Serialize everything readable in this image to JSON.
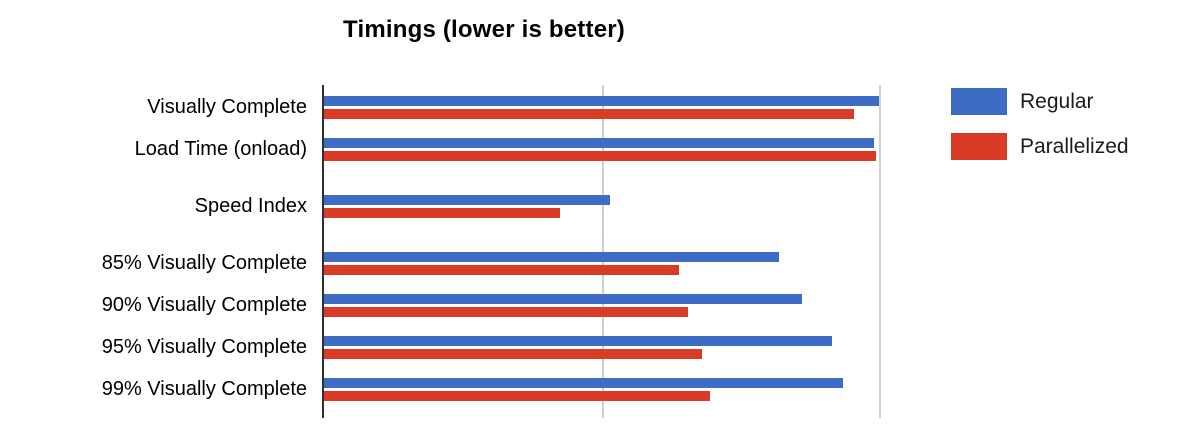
{
  "chart_data": {
    "type": "bar",
    "orientation": "horizontal",
    "title": "Timings (lower is better)",
    "categories": [
      "Visually Complete",
      "Load Time (onload)",
      "Speed Index",
      "85% Visually Complete",
      "90% Visually Complete",
      "95% Visually Complete",
      "99% Visually Complete"
    ],
    "series": [
      {
        "name": "Regular",
        "color": "#3d6cc5",
        "values": [
          2.0,
          1.98,
          1.03,
          1.64,
          1.72,
          1.83,
          1.87
        ]
      },
      {
        "name": "Parallelized",
        "color": "#d93b27",
        "values": [
          1.91,
          1.99,
          0.85,
          1.28,
          1.31,
          1.36,
          1.39
        ]
      }
    ],
    "value_scale": "relative units; no numeric axis tick labels are visible; values measured with vertical gridline interval = 1",
    "xlim": [
      0,
      2.1
    ],
    "gridlines": [
      1,
      2
    ],
    "grid_on": true,
    "grid_color": "#cdd1d4",
    "axis_color": "#2f2f2f",
    "legend_position": "right",
    "category_gap_before": [
      false,
      false,
      true,
      true,
      false,
      false,
      false
    ]
  }
}
